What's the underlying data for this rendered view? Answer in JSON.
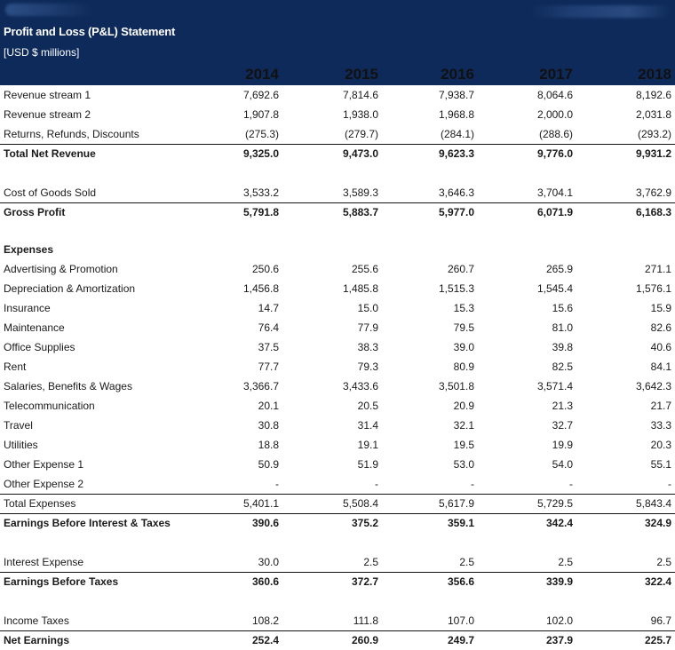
{
  "header": {
    "title": "Profit and Loss (P&L) Statement",
    "subtitle": "[USD $ millions]",
    "years": [
      "2014",
      "2015",
      "2016",
      "2017",
      "2018"
    ]
  },
  "rows": [
    {
      "label": "Revenue stream 1",
      "values": [
        "7,692.6",
        "7,814.6",
        "7,938.7",
        "8,064.6",
        "8,192.6"
      ]
    },
    {
      "label": "Revenue stream 2",
      "values": [
        "1,907.8",
        "1,938.0",
        "1,968.8",
        "2,000.0",
        "2,031.8"
      ]
    },
    {
      "label": "Returns, Refunds, Discounts",
      "values": [
        "(275.3)",
        "(279.7)",
        "(284.1)",
        "(288.6)",
        "(293.2)"
      ]
    },
    {
      "label": "Total Net Revenue",
      "values": [
        "9,325.0",
        "9,473.0",
        "9,623.3",
        "9,776.0",
        "9,931.2"
      ]
    },
    {
      "label": "Cost of Goods Sold",
      "values": [
        "3,533.2",
        "3,589.3",
        "3,646.3",
        "3,704.1",
        "3,762.9"
      ]
    },
    {
      "label": "Gross Profit",
      "values": [
        "5,791.8",
        "5,883.7",
        "5,977.0",
        "6,071.9",
        "6,168.3"
      ]
    },
    {
      "label": "Expenses",
      "values": [
        "",
        "",
        "",
        "",
        ""
      ]
    },
    {
      "label": "Advertising & Promotion",
      "values": [
        "250.6",
        "255.6",
        "260.7",
        "265.9",
        "271.1"
      ]
    },
    {
      "label": "Depreciation & Amortization",
      "values": [
        "1,456.8",
        "1,485.8",
        "1,515.3",
        "1,545.4",
        "1,576.1"
      ]
    },
    {
      "label": "Insurance",
      "values": [
        "14.7",
        "15.0",
        "15.3",
        "15.6",
        "15.9"
      ]
    },
    {
      "label": "Maintenance",
      "values": [
        "76.4",
        "77.9",
        "79.5",
        "81.0",
        "82.6"
      ]
    },
    {
      "label": "Office Supplies",
      "values": [
        "37.5",
        "38.3",
        "39.0",
        "39.8",
        "40.6"
      ]
    },
    {
      "label": "Rent",
      "values": [
        "77.7",
        "79.3",
        "80.9",
        "82.5",
        "84.1"
      ]
    },
    {
      "label": "Salaries, Benefits & Wages",
      "values": [
        "3,366.7",
        "3,433.6",
        "3,501.8",
        "3,571.4",
        "3,642.3"
      ]
    },
    {
      "label": "Telecommunication",
      "values": [
        "20.1",
        "20.5",
        "20.9",
        "21.3",
        "21.7"
      ]
    },
    {
      "label": "Travel",
      "values": [
        "30.8",
        "31.4",
        "32.1",
        "32.7",
        "33.3"
      ]
    },
    {
      "label": "Utilities",
      "values": [
        "18.8",
        "19.1",
        "19.5",
        "19.9",
        "20.3"
      ]
    },
    {
      "label": "Other Expense 1",
      "values": [
        "50.9",
        "51.9",
        "53.0",
        "54.0",
        "55.1"
      ]
    },
    {
      "label": "Other Expense 2",
      "values": [
        "-",
        "-",
        "-",
        "-",
        "-"
      ]
    },
    {
      "label": "Total Expenses",
      "values": [
        "5,401.1",
        "5,508.4",
        "5,617.9",
        "5,729.5",
        "5,843.4"
      ]
    },
    {
      "label": "Earnings Before Interest & Taxes",
      "values": [
        "390.6",
        "375.2",
        "359.1",
        "342.4",
        "324.9"
      ]
    },
    {
      "label": "Interest Expense",
      "values": [
        "30.0",
        "2.5",
        "2.5",
        "2.5",
        "2.5"
      ]
    },
    {
      "label": "Earnings Before Taxes",
      "values": [
        "360.6",
        "372.7",
        "356.6",
        "339.9",
        "322.4"
      ]
    },
    {
      "label": "Income Taxes",
      "values": [
        "108.2",
        "111.8",
        "107.0",
        "102.0",
        "96.7"
      ]
    },
    {
      "label": "Net Earnings",
      "values": [
        "252.4",
        "260.9",
        "249.7",
        "237.9",
        "225.7"
      ]
    }
  ]
}
